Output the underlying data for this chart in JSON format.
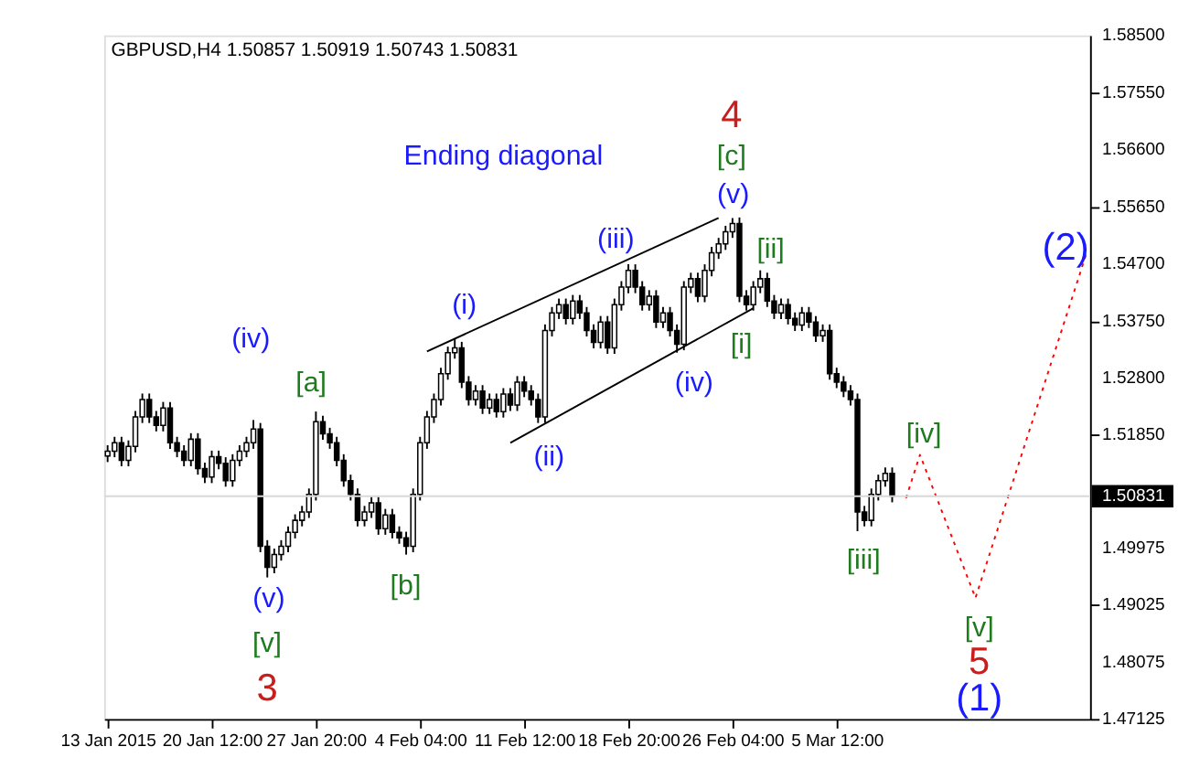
{
  "chart_data": {
    "type": "candlestick",
    "title": "GBPUSD,H4  1.50857 1.50919 1.50743 1.50831",
    "ylim": [
      1.47125,
      1.585
    ],
    "categories": [
      "13 Jan 2015",
      null,
      null,
      null,
      null,
      null,
      null,
      null,
      null,
      null,
      null,
      null,
      null,
      null,
      null,
      "20 Jan 12:00",
      null,
      null,
      null,
      null,
      null,
      null,
      null,
      null,
      null,
      null,
      null,
      null,
      null,
      null,
      "27 Jan 20:00",
      null,
      null,
      null,
      null,
      null,
      null,
      null,
      null,
      null,
      null,
      null,
      null,
      null,
      null,
      "4 Feb 04:00",
      null,
      null,
      null,
      null,
      null,
      null,
      null,
      null,
      null,
      null,
      null,
      null,
      null,
      null,
      "11 Feb 12:00",
      null,
      null,
      null,
      null,
      null,
      null,
      null,
      null,
      null,
      null,
      null,
      null,
      null,
      null,
      "18 Feb 20:00",
      null,
      null,
      null,
      null,
      null,
      null,
      null,
      null,
      null,
      null,
      null,
      null,
      null,
      null,
      "26 Feb 04:00",
      null,
      null,
      null,
      null,
      null,
      null,
      null,
      null,
      null,
      null,
      null,
      null,
      null,
      null,
      "5 Mar 12:00",
      null,
      null,
      null,
      null,
      null,
      null,
      null,
      null,
      null,
      null,
      null,
      null,
      null,
      null,
      null,
      null,
      null,
      null,
      null,
      null,
      null,
      null,
      null,
      null,
      null,
      null,
      null,
      null,
      null,
      null,
      null,
      null,
      null,
      null,
      null,
      null
    ],
    "yticks": [
      {
        "value": 1.585,
        "label": "1.58500"
      },
      {
        "value": 1.5755,
        "label": "1.57550"
      },
      {
        "value": 1.566,
        "label": "1.56600"
      },
      {
        "value": 1.5565,
        "label": "1.55650"
      },
      {
        "value": 1.547,
        "label": "1.54700"
      },
      {
        "value": 1.5375,
        "label": "1.53750"
      },
      {
        "value": 1.528,
        "label": "1.52800"
      },
      {
        "value": 1.5185,
        "label": "1.51850"
      },
      {
        "value": 1.49975,
        "label": "1.49975"
      },
      {
        "value": 1.49025,
        "label": "1.49025"
      },
      {
        "value": 1.48075,
        "label": "1.48075"
      },
      {
        "value": 1.47125,
        "label": "1.47125"
      }
    ],
    "ohlc": [
      [
        1.515,
        1.5168,
        1.514,
        1.5158
      ],
      [
        1.5158,
        1.5182,
        1.5148,
        1.5172
      ],
      [
        1.5172,
        1.5182,
        1.5133,
        1.5143
      ],
      [
        1.5143,
        1.5176,
        1.5133,
        1.5166
      ],
      [
        1.5166,
        1.5225,
        1.5156,
        1.5215
      ],
      [
        1.5215,
        1.5254,
        1.5205,
        1.5244
      ],
      [
        1.5244,
        1.5254,
        1.5205,
        1.5215
      ],
      [
        1.5215,
        1.5225,
        1.5191,
        1.5201
      ],
      [
        1.5201,
        1.524,
        1.5191,
        1.523
      ],
      [
        1.523,
        1.524,
        1.5162,
        1.5172
      ],
      [
        1.5172,
        1.5182,
        1.5148,
        1.5158
      ],
      [
        1.5158,
        1.5168,
        1.5133,
        1.5143
      ],
      [
        1.5143,
        1.5188,
        1.5133,
        1.5178
      ],
      [
        1.5178,
        1.5188,
        1.5119,
        1.5129
      ],
      [
        1.5129,
        1.5139,
        1.5105,
        1.5115
      ],
      [
        1.5115,
        1.5159,
        1.5105,
        1.5149
      ],
      [
        1.5149,
        1.5159,
        1.5128,
        1.5138
      ],
      [
        1.5138,
        1.5148,
        1.5099,
        1.5109
      ],
      [
        1.5109,
        1.5153,
        1.5099,
        1.5143
      ],
      [
        1.5143,
        1.5168,
        1.5133,
        1.5158
      ],
      [
        1.5158,
        1.5182,
        1.5148,
        1.5172
      ],
      [
        1.5172,
        1.521,
        1.5162,
        1.5195
      ],
      [
        1.5195,
        1.5205,
        1.499,
        1.5
      ],
      [
        1.5,
        1.501,
        1.4948,
        1.4965
      ],
      [
        1.4965,
        1.4996,
        1.4955,
        1.4986
      ],
      [
        1.4986,
        1.501,
        1.4976,
        1.5
      ],
      [
        1.5,
        1.5033,
        1.499,
        1.5023
      ],
      [
        1.5023,
        1.5053,
        1.5013,
        1.5043
      ],
      [
        1.5043,
        1.5067,
        1.5033,
        1.5057
      ],
      [
        1.5057,
        1.5096,
        1.5047,
        1.5086
      ],
      [
        1.5086,
        1.5224,
        1.5076,
        1.5207
      ],
      [
        1.5207,
        1.5217,
        1.5177,
        1.5187
      ],
      [
        1.5187,
        1.5197,
        1.5162,
        1.5172
      ],
      [
        1.5172,
        1.5182,
        1.5133,
        1.5143
      ],
      [
        1.5143,
        1.5153,
        1.5099,
        1.5109
      ],
      [
        1.5109,
        1.5119,
        1.5076,
        1.5086
      ],
      [
        1.5086,
        1.5096,
        1.5033,
        1.5043
      ],
      [
        1.5043,
        1.5067,
        1.5033,
        1.5057
      ],
      [
        1.5057,
        1.5082,
        1.5047,
        1.5072
      ],
      [
        1.5072,
        1.5082,
        1.5019,
        1.5029
      ],
      [
        1.5029,
        1.5062,
        1.5019,
        1.5052
      ],
      [
        1.5052,
        1.5062,
        1.5013,
        1.5023
      ],
      [
        1.5023,
        1.5033,
        1.5004,
        1.5014
      ],
      [
        1.5014,
        1.5024,
        1.4986,
        1.5
      ],
      [
        1.5,
        1.5096,
        1.499,
        1.5086
      ],
      [
        1.5086,
        1.5182,
        1.5076,
        1.5172
      ],
      [
        1.5172,
        1.5225,
        1.5162,
        1.5215
      ],
      [
        1.5215,
        1.5254,
        1.5205,
        1.5244
      ],
      [
        1.5244,
        1.5297,
        1.5234,
        1.5287
      ],
      [
        1.5287,
        1.5332,
        1.5277,
        1.5322
      ],
      [
        1.5322,
        1.5345,
        1.5312,
        1.533
      ],
      [
        1.533,
        1.534,
        1.5263,
        1.5273
      ],
      [
        1.5273,
        1.5283,
        1.5234,
        1.5244
      ],
      [
        1.5244,
        1.5268,
        1.5234,
        1.5258
      ],
      [
        1.5258,
        1.5268,
        1.522,
        1.523
      ],
      [
        1.523,
        1.5254,
        1.522,
        1.5244
      ],
      [
        1.5244,
        1.5254,
        1.5214,
        1.5224
      ],
      [
        1.5224,
        1.5263,
        1.5214,
        1.5253
      ],
      [
        1.5253,
        1.5263,
        1.5225,
        1.5235
      ],
      [
        1.5235,
        1.5283,
        1.5225,
        1.5273
      ],
      [
        1.5273,
        1.5283,
        1.5248,
        1.5258
      ],
      [
        1.5258,
        1.5268,
        1.5234,
        1.5244
      ],
      [
        1.5244,
        1.5254,
        1.5205,
        1.5215
      ],
      [
        1.5215,
        1.5369,
        1.5205,
        1.5359
      ],
      [
        1.5359,
        1.5398,
        1.5349,
        1.5388
      ],
      [
        1.5388,
        1.5412,
        1.5378,
        1.5402
      ],
      [
        1.5402,
        1.5412,
        1.5369,
        1.5379
      ],
      [
        1.5379,
        1.5418,
        1.5369,
        1.5408
      ],
      [
        1.5408,
        1.5418,
        1.5378,
        1.5388
      ],
      [
        1.5388,
        1.5398,
        1.5349,
        1.5359
      ],
      [
        1.5359,
        1.5369,
        1.5329,
        1.5339
      ],
      [
        1.5339,
        1.5383,
        1.5329,
        1.5373
      ],
      [
        1.5373,
        1.5383,
        1.532,
        1.533
      ],
      [
        1.533,
        1.5412,
        1.532,
        1.5402
      ],
      [
        1.5402,
        1.5441,
        1.5392,
        1.5431
      ],
      [
        1.5431,
        1.5469,
        1.5421,
        1.5459
      ],
      [
        1.5459,
        1.5469,
        1.5421,
        1.5431
      ],
      [
        1.5431,
        1.5441,
        1.5392,
        1.5402
      ],
      [
        1.5402,
        1.5426,
        1.5392,
        1.5416
      ],
      [
        1.5416,
        1.5426,
        1.5363,
        1.5373
      ],
      [
        1.5373,
        1.5398,
        1.5363,
        1.5388
      ],
      [
        1.5388,
        1.5398,
        1.5349,
        1.5359
      ],
      [
        1.5359,
        1.5369,
        1.5322,
        1.5336
      ],
      [
        1.5336,
        1.5441,
        1.5326,
        1.5431
      ],
      [
        1.5431,
        1.5455,
        1.5421,
        1.5445
      ],
      [
        1.5445,
        1.5455,
        1.5406,
        1.5416
      ],
      [
        1.5416,
        1.5469,
        1.5406,
        1.5459
      ],
      [
        1.5459,
        1.5498,
        1.5449,
        1.5488
      ],
      [
        1.5488,
        1.5513,
        1.5478,
        1.5503
      ],
      [
        1.5503,
        1.5533,
        1.5493,
        1.5523
      ],
      [
        1.5523,
        1.5546,
        1.5513,
        1.5537
      ],
      [
        1.5537,
        1.5547,
        1.5406,
        1.5416
      ],
      [
        1.5416,
        1.5426,
        1.5392,
        1.5402
      ],
      [
        1.5402,
        1.5441,
        1.5392,
        1.5431
      ],
      [
        1.5431,
        1.5459,
        1.5421,
        1.5445
      ],
      [
        1.5445,
        1.5455,
        1.5398,
        1.5408
      ],
      [
        1.5408,
        1.5418,
        1.5378,
        1.5388
      ],
      [
        1.5388,
        1.5412,
        1.5378,
        1.5402
      ],
      [
        1.5402,
        1.5412,
        1.5369,
        1.5379
      ],
      [
        1.5379,
        1.5389,
        1.5358,
        1.5368
      ],
      [
        1.5368,
        1.5398,
        1.5358,
        1.5388
      ],
      [
        1.5388,
        1.5398,
        1.5363,
        1.5373
      ],
      [
        1.5373,
        1.5383,
        1.534,
        1.535
      ],
      [
        1.535,
        1.5369,
        1.534,
        1.5359
      ],
      [
        1.5359,
        1.5369,
        1.5277,
        1.5287
      ],
      [
        1.5287,
        1.5297,
        1.5263,
        1.5273
      ],
      [
        1.5273,
        1.5283,
        1.5248,
        1.5258
      ],
      [
        1.5258,
        1.5268,
        1.5234,
        1.5244
      ],
      [
        1.5244,
        1.5254,
        1.5025,
        1.5057
      ],
      [
        1.5057,
        1.5067,
        1.5033,
        1.5043
      ],
      [
        1.5043,
        1.5096,
        1.5033,
        1.5086
      ],
      [
        1.5086,
        1.5119,
        1.5076,
        1.5109
      ],
      [
        1.5109,
        1.5131,
        1.5099,
        1.5121
      ],
      [
        1.5121,
        1.5131,
        1.5073,
        1.5083
      ],
      null,
      null,
      null,
      null,
      null,
      null,
      null,
      null,
      null,
      null,
      null,
      null,
      null,
      null,
      null,
      null,
      null,
      null,
      null,
      null,
      null,
      null,
      null,
      null,
      null,
      null,
      null,
      null
    ],
    "series": [
      {
        "type": "line",
        "color": "#000000",
        "values": [
          null,
          null,
          null,
          null,
          null,
          null,
          null,
          null,
          null,
          null,
          null,
          null,
          null,
          null,
          null,
          null,
          null,
          null,
          null,
          null,
          null,
          null,
          null,
          null,
          null,
          null,
          null,
          null,
          null,
          null,
          null,
          null,
          null,
          null,
          null,
          null,
          null,
          null,
          null,
          null,
          null,
          null,
          null,
          null,
          null,
          null,
          1.5324,
          null,
          null,
          null,
          null,
          null,
          null,
          null,
          null,
          null,
          null,
          null,
          null,
          null,
          null,
          null,
          null,
          null,
          null,
          null,
          null,
          null,
          null,
          null,
          null,
          null,
          null,
          null,
          null,
          null,
          null,
          null,
          null,
          null,
          null,
          null,
          null,
          null,
          null,
          null,
          null,
          null,
          1.5546,
          null,
          null,
          null,
          null,
          null,
          null,
          null,
          null,
          null,
          null,
          null,
          null,
          null,
          null,
          null,
          null,
          null,
          null,
          null,
          null,
          null,
          null,
          null,
          null,
          null,
          null,
          null,
          null,
          null,
          null,
          null,
          null,
          null,
          null,
          null,
          null,
          null,
          null,
          null,
          null,
          null,
          null,
          null,
          null,
          null,
          null,
          null,
          null,
          null,
          null,
          null,
          null,
          null
        ]
      },
      {
        "type": "line",
        "color": "#000000",
        "values": [
          null,
          null,
          null,
          null,
          null,
          null,
          null,
          null,
          null,
          null,
          null,
          null,
          null,
          null,
          null,
          null,
          null,
          null,
          null,
          null,
          null,
          null,
          null,
          null,
          null,
          null,
          null,
          null,
          null,
          null,
          null,
          null,
          null,
          null,
          null,
          null,
          null,
          null,
          null,
          null,
          null,
          null,
          null,
          null,
          null,
          null,
          null,
          null,
          null,
          null,
          null,
          null,
          null,
          null,
          null,
          null,
          null,
          null,
          1.5172,
          null,
          null,
          null,
          null,
          null,
          null,
          null,
          null,
          null,
          null,
          null,
          null,
          null,
          null,
          null,
          null,
          null,
          null,
          null,
          null,
          null,
          null,
          null,
          null,
          null,
          null,
          null,
          null,
          null,
          null,
          null,
          null,
          null,
          null,
          1.5396,
          null,
          null,
          null,
          null,
          null,
          null,
          null,
          null,
          null,
          null,
          null,
          null,
          null,
          null,
          null,
          null,
          null,
          null,
          null,
          null,
          null,
          null,
          null,
          null,
          null,
          null,
          null,
          null,
          null,
          null,
          null,
          null,
          null,
          null,
          null,
          null,
          null,
          null,
          null,
          null,
          null,
          null,
          null,
          null,
          null,
          null,
          null,
          null
        ]
      },
      {
        "type": "line",
        "color": "#ff0000",
        "line_style": "dotted",
        "values": [
          null,
          null,
          null,
          null,
          null,
          null,
          null,
          null,
          null,
          null,
          null,
          null,
          null,
          null,
          null,
          null,
          null,
          null,
          null,
          null,
          null,
          null,
          null,
          null,
          null,
          null,
          null,
          null,
          null,
          null,
          null,
          null,
          null,
          null,
          null,
          null,
          null,
          null,
          null,
          null,
          null,
          null,
          null,
          null,
          null,
          null,
          null,
          null,
          null,
          null,
          null,
          null,
          null,
          null,
          null,
          null,
          null,
          null,
          null,
          null,
          null,
          null,
          null,
          null,
          null,
          null,
          null,
          null,
          null,
          null,
          null,
          null,
          null,
          null,
          null,
          null,
          null,
          null,
          null,
          null,
          null,
          null,
          null,
          null,
          null,
          null,
          null,
          null,
          null,
          null,
          null,
          null,
          null,
          null,
          null,
          null,
          null,
          null,
          null,
          null,
          null,
          null,
          null,
          null,
          null,
          null,
          null,
          null,
          null,
          null,
          null,
          null,
          null,
          null,
          null,
          1.508,
          null,
          1.5152,
          null,
          null,
          null,
          null,
          null,
          null,
          null,
          1.4914,
          null,
          null,
          null,
          null,
          null,
          null,
          null,
          null,
          null,
          null,
          null,
          null,
          null,
          null,
          null,
          1.5488
        ]
      }
    ],
    "ref_lines": [
      {
        "axis": "y",
        "value": 1.50831,
        "label": "1.50831",
        "color": "#d8d8d8"
      }
    ],
    "annotations": [
      "Ending diagonal",
      "(iv)",
      "[a]",
      "(v)",
      "[v]",
      "3",
      "[b]",
      "(i)",
      "(ii)",
      "(iii)",
      "(iv)",
      "(v)",
      "[c]",
      "4",
      "[ii]",
      "[i]",
      "[iii]",
      "[iv]",
      "[v]",
      "5",
      "(1)",
      "(2)"
    ]
  }
}
